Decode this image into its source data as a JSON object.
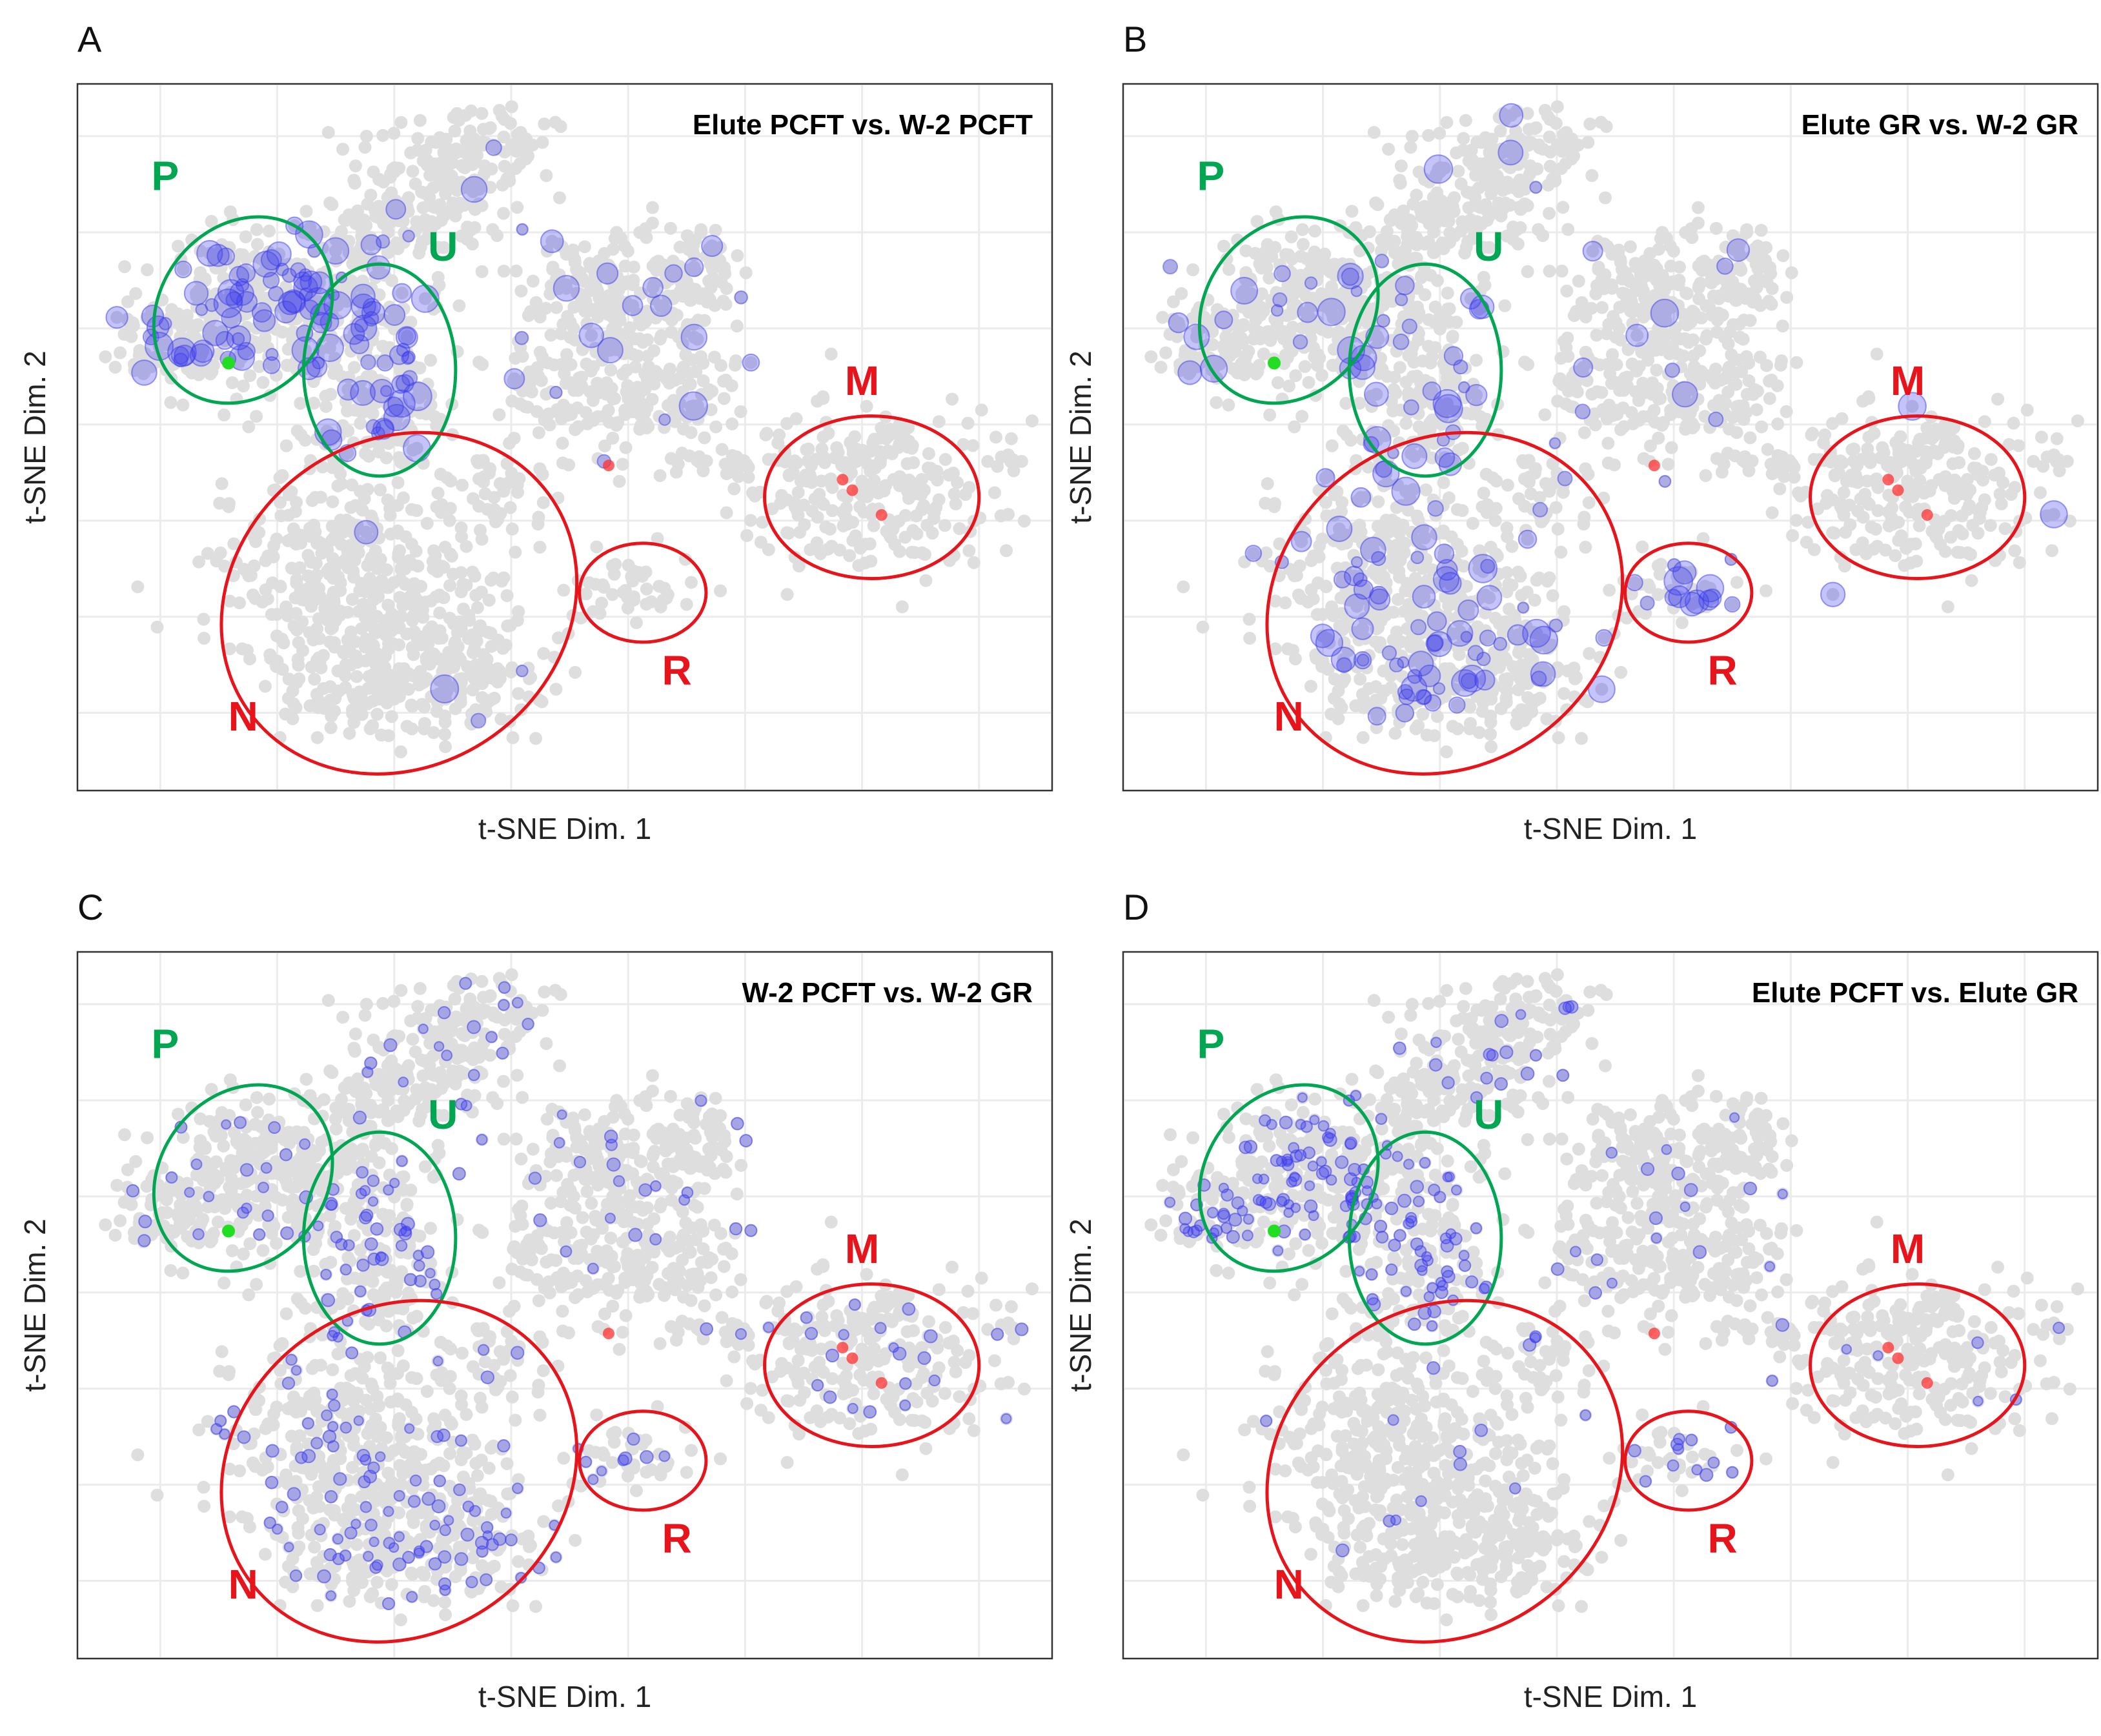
{
  "colors": {
    "background_points": "#dedede",
    "highlight_points": "#3b3bf0",
    "red_points": "#ff3030",
    "green_point": "#22dd22",
    "green_region": "#00a651",
    "red_region": "#e8141c"
  },
  "axes": {
    "x_label": "t-SNE Dim. 1",
    "y_label": "t-SNE Dim. 2",
    "x_range": [
      0,
      100
    ],
    "y_range": [
      0,
      100
    ],
    "grid": true
  },
  "regions": [
    {
      "label": "P",
      "color": "green",
      "cx": 17,
      "cy": 68,
      "rx": 8.5,
      "ry": 14,
      "rot": -38
    },
    {
      "label": "U",
      "color": "green",
      "cx": 31,
      "cy": 59.5,
      "rx": 7.8,
      "ry": 15,
      "rot": 0
    },
    {
      "label": "N",
      "color": "red",
      "cx": 33,
      "cy": 26.5,
      "rx": 19,
      "ry": 23,
      "rot": 36
    },
    {
      "label": "R",
      "color": "red",
      "cx": 58,
      "cy": 28,
      "rx": 6.5,
      "ry": 7,
      "rot": 0
    },
    {
      "label": "M",
      "color": "red",
      "cx": 81.5,
      "cy": 41.5,
      "rx": 11,
      "ry": 11.5,
      "rot": 0
    }
  ],
  "chart_data": [
    {
      "type": "scatter",
      "panel": "A",
      "title": "Elute PCFT vs. W-2 PCFT",
      "xlabel": "t-SNE Dim. 1",
      "ylabel": "t-SNE Dim. 2",
      "seed": 11,
      "highlight": {
        "P": 70,
        "U": 45,
        "N": 4,
        "R": 0,
        "M": 0,
        "other": 28,
        "size_min": 8,
        "size_max": 22,
        "alpha": 0.3
      },
      "red_points": [
        [
          54.5,
          46
        ],
        [
          78.5,
          44
        ],
        [
          79.5,
          42.5
        ],
        [
          82.5,
          39
        ]
      ],
      "green_point": [
        15.5,
        60.5
      ]
    },
    {
      "type": "scatter",
      "panel": "B",
      "title": "Elute GR vs. W-2 GR",
      "xlabel": "t-SNE Dim. 1",
      "ylabel": "t-SNE Dim. 2",
      "seed": 23,
      "highlight": {
        "P": 16,
        "U": 30,
        "N": 80,
        "R": 14,
        "M": 0,
        "other": 22,
        "size_min": 8,
        "size_max": 22,
        "alpha": 0.3
      },
      "red_points": [
        [
          54.5,
          46
        ],
        [
          78.5,
          44
        ],
        [
          79.5,
          42.5
        ],
        [
          82.5,
          39
        ]
      ],
      "green_point": [
        15.5,
        60.5
      ]
    },
    {
      "type": "scatter",
      "panel": "C",
      "title": "W-2 PCFT vs. W-2 GR",
      "xlabel": "t-SNE Dim. 1",
      "ylabel": "t-SNE Dim. 2",
      "seed": 37,
      "highlight": {
        "P": 20,
        "U": 45,
        "N": 110,
        "R": 6,
        "M": 18,
        "other": 55,
        "size_min": 7,
        "size_max": 10,
        "alpha": 0.35
      },
      "red_points": [
        [
          54.5,
          46
        ],
        [
          78.5,
          44
        ],
        [
          79.5,
          42.5
        ],
        [
          82.5,
          39
        ]
      ],
      "green_point": [
        15.5,
        60.5
      ]
    },
    {
      "type": "scatter",
      "panel": "D",
      "title": "Elute PCFT vs. Elute GR",
      "xlabel": "t-SNE Dim. 1",
      "ylabel": "t-SNE Dim. 2",
      "seed": 53,
      "highlight": {
        "P": 90,
        "U": 60,
        "N": 12,
        "R": 12,
        "M": 4,
        "other": 45,
        "size_min": 7,
        "size_max": 10,
        "alpha": 0.35
      },
      "red_points": [
        [
          54.5,
          46
        ],
        [
          78.5,
          44
        ],
        [
          79.5,
          42.5
        ],
        [
          82.5,
          39
        ]
      ],
      "green_point": [
        15.5,
        60.5
      ]
    }
  ]
}
